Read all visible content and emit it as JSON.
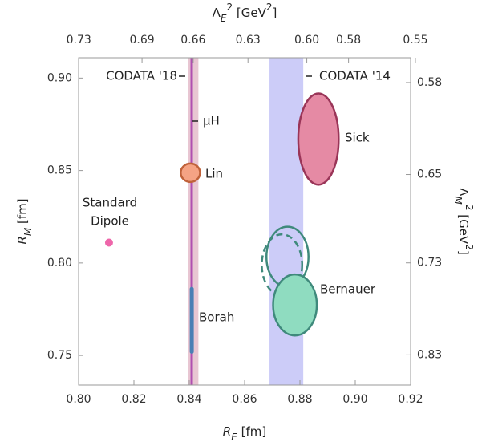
{
  "chart_data": {
    "type": "scatter",
    "xlabel": [
      "R",
      "E",
      " [fm]"
    ],
    "ylabel": [
      "R",
      "M",
      " [fm]"
    ],
    "x2label": [
      "Λ",
      "E",
      "2",
      " [GeV",
      "2",
      "]"
    ],
    "y2label": [
      "Λ",
      "M",
      "2",
      " [GeV",
      "2",
      "]"
    ],
    "xlim": [
      0.8,
      0.92
    ],
    "ylim": [
      0.734,
      0.911
    ],
    "xticks": [
      {
        "value": 0.8,
        "label": "0.80"
      },
      0.82,
      0.84,
      0.86,
      0.88,
      {
        "value": 0.9,
        "label": "0.90"
      },
      0.92
    ],
    "yticks": [
      0.75,
      {
        "value": 0.8,
        "label": "0.80"
      },
      0.85,
      {
        "value": 0.9,
        "label": "0.90"
      }
    ],
    "x2ticks": [
      0.73,
      0.69,
      0.66,
      0.63,
      {
        "value": 0.6,
        "label": "0.60"
      },
      0.58,
      0.55
    ],
    "y2ticks": [
      0.58,
      0.65,
      0.73,
      0.83
    ],
    "series": [
      {
        "name": "CODATA '14",
        "shape": "band",
        "x": 0.8751,
        "error": 0.0061,
        "color": "#ccccf8"
      },
      {
        "name": "CODATA '18",
        "shape": "band",
        "x": 0.8414,
        "error": 0.0019,
        "color": "#e8c6d2"
      },
      {
        "name": "μH",
        "shape": "vline",
        "x": 0.84087,
        "color": "#b04fb0"
      },
      {
        "name": "Borah",
        "shape": "segment",
        "x": 0.8409,
        "y": [
          0.752,
          0.786
        ],
        "color": "#4a7fb5"
      },
      {
        "name": "Lin",
        "shape": "ellipse",
        "color": "#f5a384",
        "stroke": "#c0623a",
        "ellipses": [
          {
            "x": 0.8404,
            "y": 0.8488,
            "rx": 0.0035,
            "ry": 0.005,
            "style": "filled"
          }
        ]
      },
      {
        "name": "Sick",
        "shape": "ellipse",
        "color": "#e58aa4",
        "stroke": "#9a3558",
        "ellipses": [
          {
            "x": 0.8867,
            "y": 0.867,
            "rx": 0.0073,
            "ry": 0.0247,
            "style": "filled"
          }
        ]
      },
      {
        "name": "Bernauer",
        "shape": "ellipse",
        "color": "#8fdcc0",
        "stroke": "#3f8a7c",
        "ellipses": [
          {
            "x": 0.8735,
            "y": 0.799,
            "rx": 0.0073,
            "ry": 0.0165,
            "style": "dashed"
          },
          {
            "x": 0.8755,
            "y": 0.8033,
            "rx": 0.0076,
            "ry": 0.0163,
            "style": "outline"
          },
          {
            "x": 0.8782,
            "y": 0.7773,
            "rx": 0.0079,
            "ry": 0.0165,
            "style": "filled"
          }
        ]
      },
      {
        "name": [
          "Standard",
          "Dipole"
        ],
        "shape": "point",
        "x": 0.811,
        "y": 0.811,
        "color": "#ee66aa"
      }
    ]
  }
}
